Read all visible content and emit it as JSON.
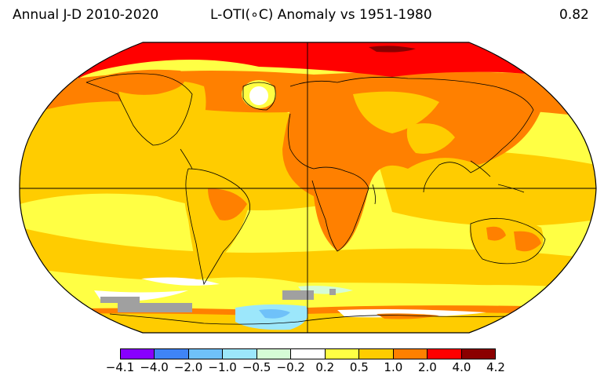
{
  "header": {
    "left": "Annual J-D 2010-2020",
    "center": "L-OTI(∘C) Anomaly vs 1951-1980",
    "right": "0.82"
  },
  "legend": {
    "ticks": [
      "−4.1",
      "−4.0",
      "−2.0",
      "−1.0",
      "−0.5",
      "−0.2",
      "0.2",
      "0.5",
      "1.0",
      "2.0",
      "4.0",
      "4.2"
    ],
    "colors": [
      "#8800ff",
      "#3f84f7",
      "#6fc1f9",
      "#9ce7fb",
      "#d5fcd6",
      "#ffffff",
      "#ffff44",
      "#ffcc00",
      "#ff8000",
      "#ff0000",
      "#8b0000"
    ]
  },
  "map": {
    "projection": "Robinson",
    "ocean_color": "#ffff44",
    "land_color": "#ffcc00",
    "arctic_color": "#ff0000",
    "missing_color": "#a0a0a0"
  }
}
